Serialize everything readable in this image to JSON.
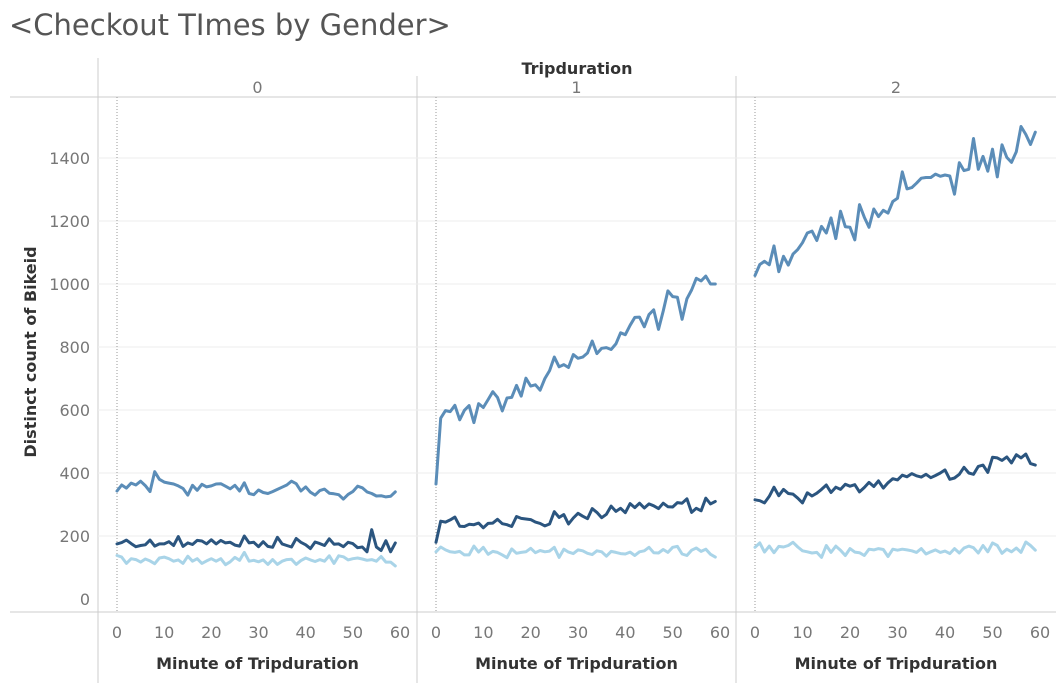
{
  "title": "<Checkout TImes by Gender>",
  "colors": {
    "series_male": "#5b8db8",
    "series_female": "#2b557f",
    "series_unknown": "#a9d4e8",
    "gridline": "#eeeeee",
    "divider": "#cccccc",
    "zero_line": "#999999"
  },
  "chart_data": {
    "type": "line",
    "column_header": "Tripduration",
    "panels": [
      "0",
      "1",
      "2"
    ],
    "xlabel": "Minute of Tripduration",
    "ylabel": "Distinct count of Bikeid",
    "xlim": [
      0,
      60
    ],
    "ylim": [
      0,
      1550
    ],
    "xticks": [
      0,
      10,
      20,
      30,
      40,
      50,
      60
    ],
    "yticks": [
      0,
      200,
      400,
      600,
      800,
      1000,
      1200,
      1400
    ],
    "grid": true,
    "x": [
      0,
      1,
      2,
      3,
      4,
      5,
      6,
      7,
      8,
      9,
      10,
      11,
      12,
      13,
      14,
      15,
      16,
      17,
      18,
      19,
      20,
      21,
      22,
      23,
      24,
      25,
      26,
      27,
      28,
      29,
      30,
      31,
      32,
      33,
      34,
      35,
      36,
      37,
      38,
      39,
      40,
      41,
      42,
      43,
      44,
      45,
      46,
      47,
      48,
      49,
      50,
      51,
      52,
      53,
      54,
      55,
      56,
      57,
      58,
      59
    ],
    "series": [
      {
        "panel": "0",
        "color": "#5b8db8",
        "values": [
          343,
          362,
          352,
          368,
          362,
          374,
          360,
          341,
          404,
          380,
          371,
          368,
          365,
          359,
          351,
          330,
          361,
          345,
          364,
          356,
          359,
          365,
          366,
          358,
          350,
          361,
          343,
          369,
          335,
          331,
          346,
          338,
          335,
          341,
          348,
          355,
          362,
          374,
          366,
          343,
          356,
          339,
          330,
          344,
          349,
          336,
          334,
          331,
          317,
          332,
          341,
          358,
          353,
          340,
          335,
          327,
          328,
          324,
          326,
          340
        ]
      },
      {
        "panel": "0",
        "color": "#2b557f",
        "values": [
          175,
          179,
          187,
          176,
          166,
          170,
          172,
          187,
          168,
          175,
          175,
          182,
          170,
          198,
          167,
          178,
          173,
          186,
          184,
          175,
          188,
          175,
          186,
          178,
          180,
          171,
          168,
          200,
          178,
          180,
          166,
          182,
          167,
          164,
          196,
          175,
          170,
          165,
          192,
          180,
          172,
          160,
          181,
          176,
          170,
          191,
          174,
          175,
          166,
          180,
          176,
          163,
          165,
          150,
          220,
          165,
          154,
          185,
          150,
          178
        ]
      },
      {
        "panel": "0",
        "color": "#a9d4e8",
        "values": [
          138,
          133,
          113,
          128,
          125,
          117,
          127,
          121,
          112,
          130,
          133,
          128,
          120,
          124,
          113,
          136,
          120,
          128,
          113,
          121,
          128,
          120,
          128,
          109,
          118,
          132,
          123,
          148,
          120,
          123,
          118,
          124,
          110,
          125,
          110,
          120,
          125,
          126,
          110,
          122,
          130,
          124,
          119,
          125,
          120,
          137,
          113,
          137,
          134,
          124,
          128,
          130,
          127,
          123,
          125,
          120,
          135,
          117,
          117,
          105
        ]
      },
      {
        "panel": "1",
        "color": "#5b8db8",
        "values": [
          365,
          574,
          598,
          595,
          615,
          569,
          599,
          614,
          560,
          620,
          608,
          633,
          658,
          640,
          597,
          638,
          640,
          678,
          644,
          701,
          676,
          680,
          663,
          700,
          725,
          768,
          737,
          744,
          735,
          776,
          764,
          768,
          781,
          819,
          779,
          796,
          798,
          792,
          810,
          845,
          839,
          869,
          894,
          895,
          864,
          903,
          918,
          856,
          914,
          978,
          960,
          958,
          888,
          953,
          981,
          1018,
          1010,
          1025,
          1000,
          1000
        ]
      },
      {
        "panel": "1",
        "color": "#2b557f",
        "values": [
          180,
          247,
          244,
          251,
          260,
          231,
          230,
          237,
          236,
          241,
          226,
          240,
          241,
          253,
          239,
          236,
          230,
          262,
          256,
          254,
          252,
          244,
          240,
          232,
          238,
          277,
          259,
          268,
          238,
          257,
          272,
          263,
          255,
          287,
          275,
          258,
          269,
          295,
          278,
          288,
          274,
          303,
          290,
          304,
          289,
          302,
          296,
          287,
          304,
          293,
          292,
          306,
          304,
          318,
          275,
          288,
          280,
          320,
          302,
          310
        ]
      },
      {
        "panel": "1",
        "color": "#a9d4e8",
        "values": [
          150,
          165,
          156,
          150,
          148,
          151,
          140,
          140,
          168,
          149,
          164,
          142,
          151,
          148,
          140,
          131,
          159,
          145,
          148,
          150,
          161,
          147,
          154,
          150,
          152,
          164,
          132,
          158,
          149,
          144,
          156,
          153,
          145,
          141,
          153,
          150,
          136,
          151,
          148,
          144,
          143,
          149,
          138,
          150,
          153,
          164,
          147,
          146,
          157,
          148,
          164,
          167,
          143,
          138,
          155,
          162,
          151,
          158,
          142,
          133
        ]
      },
      {
        "panel": "2",
        "color": "#5b8db8",
        "values": [
          1027,
          1062,
          1072,
          1061,
          1121,
          1039,
          1088,
          1060,
          1095,
          1110,
          1131,
          1162,
          1168,
          1138,
          1183,
          1162,
          1210,
          1144,
          1231,
          1182,
          1180,
          1140,
          1252,
          1212,
          1180,
          1238,
          1214,
          1234,
          1225,
          1262,
          1272,
          1356,
          1302,
          1306,
          1320,
          1336,
          1338,
          1338,
          1349,
          1342,
          1346,
          1343,
          1285,
          1385,
          1360,
          1364,
          1462,
          1364,
          1405,
          1358,
          1428,
          1340,
          1442,
          1402,
          1386,
          1420,
          1500,
          1475,
          1443,
          1482
        ]
      },
      {
        "panel": "2",
        "color": "#2b557f",
        "values": [
          315,
          312,
          305,
          326,
          355,
          328,
          348,
          335,
          333,
          320,
          305,
          337,
          327,
          336,
          348,
          362,
          338,
          355,
          348,
          364,
          358,
          363,
          340,
          354,
          370,
          357,
          375,
          352,
          369,
          382,
          378,
          393,
          388,
          398,
          391,
          387,
          396,
          385,
          392,
          400,
          410,
          380,
          384,
          396,
          418,
          400,
          396,
          421,
          425,
          402,
          450,
          448,
          440,
          451,
          432,
          458,
          448,
          460,
          430,
          425
        ]
      },
      {
        "panel": "2",
        "color": "#a9d4e8",
        "values": [
          164,
          178,
          149,
          168,
          147,
          167,
          165,
          170,
          180,
          165,
          153,
          150,
          146,
          148,
          132,
          170,
          148,
          168,
          155,
          138,
          160,
          149,
          147,
          138,
          158,
          156,
          160,
          157,
          135,
          158,
          155,
          158,
          156,
          153,
          148,
          160,
          143,
          150,
          156,
          148,
          152,
          144,
          160,
          146,
          162,
          168,
          163,
          146,
          170,
          150,
          178,
          170,
          145,
          158,
          150,
          162,
          148,
          181,
          170,
          155
        ]
      }
    ]
  }
}
